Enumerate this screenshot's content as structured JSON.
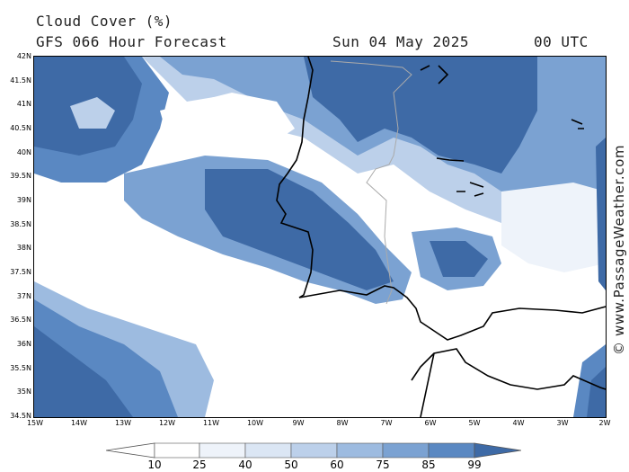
{
  "header": {
    "title": "Cloud Cover (%)",
    "subtitle": "GFS 066 Hour Forecast",
    "date": "Sun 04 May 2025",
    "time": "00 UTC"
  },
  "credit": "© www.PassageWeather.com",
  "map": {
    "lat_labels": [
      "42N",
      "41.5N",
      "41N",
      "40.5N",
      "40N",
      "39.5N",
      "39N",
      "38.5N",
      "38N",
      "37.5N",
      "37N",
      "36.5N",
      "36N",
      "35.5N",
      "35N",
      "34.5N"
    ],
    "lon_labels": [
      "15W",
      "14W",
      "13W",
      "12W",
      "11W",
      "10W",
      "9W",
      "8W",
      "7W",
      "6W",
      "5W",
      "4W",
      "3W",
      "2W"
    ],
    "lat_range": [
      34.5,
      42
    ],
    "lon_range": [
      -15,
      -2
    ],
    "coastline_color": "#000000",
    "border_color": "#aaaaaa"
  },
  "legend": {
    "ticks": [
      "10",
      "25",
      "40",
      "50",
      "60",
      "75",
      "85",
      "99"
    ],
    "colors": [
      "#ffffff",
      "#eef3fa",
      "#dbe6f4",
      "#bcd0ea",
      "#9dbbe0",
      "#7ba2d2",
      "#5a88c2",
      "#3e6aa6",
      "#2e5a95"
    ]
  }
}
